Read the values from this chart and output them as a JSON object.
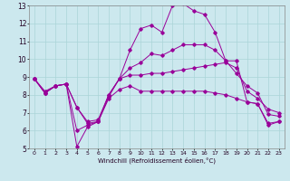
{
  "xlabel": "Windchill (Refroidissement éolien,°C)",
  "bg_color": "#cce8ee",
  "line_color": "#990099",
  "grid_color": "#aad4d8",
  "xlim": [
    -0.5,
    23.5
  ],
  "ylim": [
    5,
    13
  ],
  "yticks": [
    5,
    6,
    7,
    8,
    9,
    10,
    11,
    12,
    13
  ],
  "xticks": [
    0,
    1,
    2,
    3,
    4,
    5,
    6,
    7,
    8,
    9,
    10,
    11,
    12,
    13,
    14,
    15,
    16,
    17,
    18,
    19,
    20,
    21,
    22,
    23
  ],
  "line1_y": [
    8.9,
    8.1,
    8.5,
    8.6,
    7.3,
    6.4,
    6.5,
    8.0,
    8.9,
    10.5,
    11.7,
    11.9,
    11.5,
    13.0,
    13.1,
    12.7,
    12.5,
    11.5,
    9.9,
    9.9,
    7.6,
    7.5,
    6.3,
    6.5
  ],
  "line2_y": [
    8.9,
    8.1,
    8.5,
    8.6,
    5.1,
    6.2,
    6.5,
    7.9,
    8.9,
    9.1,
    9.1,
    9.2,
    9.2,
    9.3,
    9.4,
    9.5,
    9.6,
    9.7,
    9.8,
    9.5,
    8.2,
    7.8,
    7.2,
    7.0
  ],
  "line3_y": [
    8.9,
    8.1,
    8.5,
    8.6,
    6.0,
    6.3,
    6.5,
    7.8,
    8.3,
    8.5,
    8.2,
    8.2,
    8.2,
    8.2,
    8.2,
    8.2,
    8.2,
    8.1,
    8.0,
    7.8,
    7.6,
    7.5,
    6.4,
    6.5
  ],
  "line4_y": [
    8.9,
    8.2,
    8.5,
    8.6,
    7.3,
    6.5,
    6.6,
    8.0,
    8.9,
    9.5,
    9.8,
    10.3,
    10.2,
    10.5,
    10.8,
    10.8,
    10.8,
    10.5,
    9.9,
    9.2,
    8.5,
    8.1,
    6.9,
    6.8
  ]
}
